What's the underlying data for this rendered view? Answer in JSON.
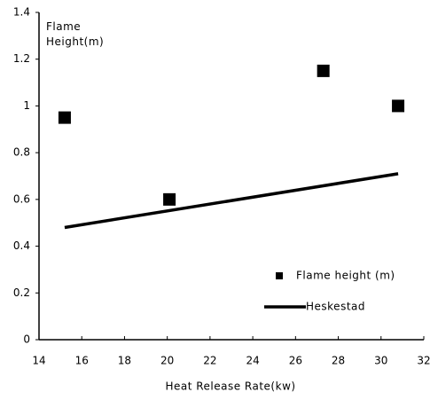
{
  "chart_data": {
    "type": "scatter",
    "ylabel": "Flame Height(m)",
    "xlabel": "Heat Release Rate(kw)",
    "series": [
      {
        "name": "Flame height (m)",
        "type": "scatter",
        "color": "#000000",
        "x": [
          15.2,
          20.1,
          27.3,
          30.8
        ],
        "values": [
          0.95,
          0.6,
          1.15,
          1.0
        ]
      },
      {
        "name": "Heskestad",
        "type": "line",
        "color": "#000000",
        "x": [
          15.2,
          30.8
        ],
        "values": [
          0.48,
          0.71
        ]
      }
    ],
    "xlim": [
      14,
      32
    ],
    "xticks": [
      14,
      16,
      18,
      20,
      22,
      24,
      26,
      28,
      30,
      32
    ],
    "ylim": [
      0,
      1.4
    ],
    "yticks": [
      0,
      0.2,
      0.4,
      0.6,
      0.8,
      1,
      1.2,
      1.4
    ],
    "grid": false,
    "legend": "lower right"
  }
}
